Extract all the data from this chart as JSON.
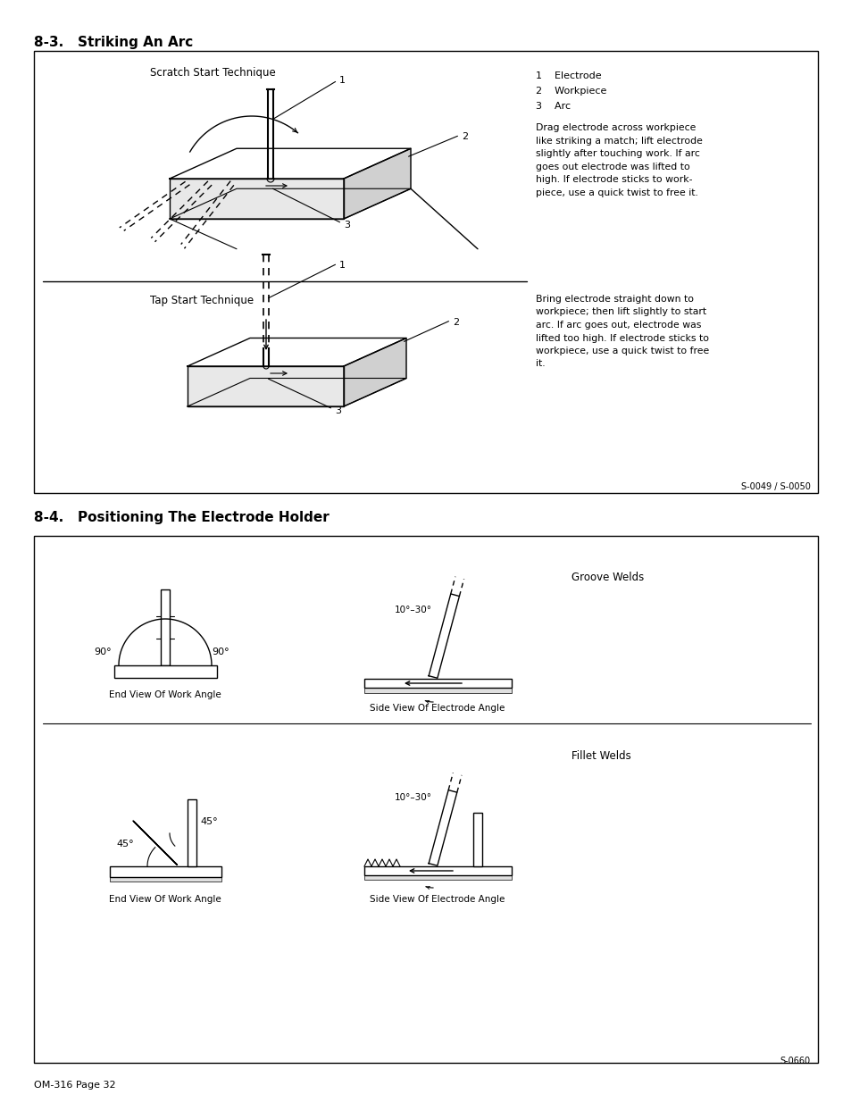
{
  "page_title_1": "8-3.   Striking An Arc",
  "page_title_2": "8-4.   Positioning The Electrode Holder",
  "page_footer": "OM-316 Page 32",
  "section1_ref": "S-0049 / S-0050",
  "section2_ref": "S-0660",
  "scratch_label": "Scratch Start Technique",
  "tap_label": "Tap Start Technique",
  "num1": "1",
  "num2": "2",
  "num3": "3",
  "legend_1": "1    Electrode",
  "legend_2": "2    Workpiece",
  "legend_3": "3    Arc",
  "scratch_desc": "Drag electrode across workpiece\nlike striking a match; lift electrode\nslightly after touching work. If arc\ngoes out electrode was lifted to\nhigh. If electrode sticks to work-\npiece, use a quick twist to free it.",
  "tap_desc": "Bring electrode straight down to\nworkpiece; then lift slightly to start\narc. If arc goes out, electrode was\nlifted too high. If electrode sticks to\nworkpiece, use a quick twist to free\nit.",
  "end_view_label": "End View Of Work Angle",
  "side_view_label": "Side View Of Electrode Angle",
  "end_view_label2": "End View Of Work Angle",
  "side_view_label2": "Side View Of Electrode Angle",
  "groove_label": "Groove Welds",
  "fillet_label": "Fillet Welds",
  "angle_90_left": "90°",
  "angle_90_right": "90°",
  "angle_45_left": "45°",
  "angle_45_right": "45°",
  "angle_10_30_1": "10°–30°",
  "angle_10_30_2": "10°–30°",
  "bg_color": "#ffffff",
  "text_color": "#000000"
}
